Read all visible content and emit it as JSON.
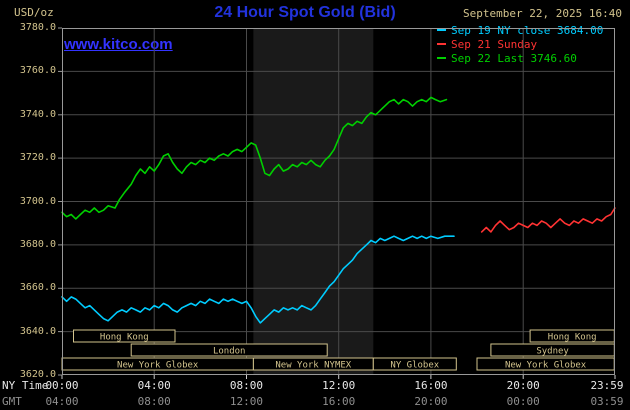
{
  "header": {
    "units": "USD/oz",
    "title": "24 Hour Spot Gold (Bid)",
    "datetime": "September 22, 2025 16:40",
    "watermark": "www.kitco.com"
  },
  "legend": [
    {
      "label": "Sep 19 NY close 3684.00",
      "color": "#00ccff"
    },
    {
      "label": "Sep 21 Sunday",
      "color": "#ff3333"
    },
    {
      "label": "Sep 22 Last 3746.60",
      "color": "#00d000"
    }
  ],
  "axes": {
    "ny_time_label": "NY Time",
    "gmt_label": "GMT",
    "tick_hours": [
      0,
      4,
      8,
      12,
      16,
      20,
      23.983
    ],
    "ny_ticks": [
      "00:00",
      "04:00",
      "08:00",
      "12:00",
      "16:00",
      "20:00",
      "23:59"
    ],
    "gmt_ticks": [
      "04:00",
      "08:00",
      "12:00",
      "16:00",
      "20:00",
      "00:00",
      "03:59"
    ],
    "y_ticks": [
      "3780.0",
      "3760.0",
      "3740.0",
      "3720.0",
      "3700.0",
      "3680.0",
      "3660.0",
      "3640.0",
      "3620.0"
    ]
  },
  "sessions": [
    {
      "row": 0,
      "label": "Hong Kong",
      "start": 0.5,
      "end": 4.9
    },
    {
      "row": 0,
      "label": "Hong Kong",
      "start": 20.3,
      "end": 23.95
    },
    {
      "row": 1,
      "label": "London",
      "start": 3.0,
      "end": 11.5
    },
    {
      "row": 1,
      "label": "Sydney",
      "start": 18.6,
      "end": 23.95
    },
    {
      "row": 2,
      "label": "New York Globex",
      "start": 0.0,
      "end": 8.3
    },
    {
      "row": 2,
      "label": "New York NYMEX",
      "start": 8.3,
      "end": 13.5
    },
    {
      "row": 2,
      "label": "NY Globex",
      "start": 13.5,
      "end": 17.1
    },
    {
      "row": 2,
      "label": "New York Globex",
      "start": 18.0,
      "end": 23.95
    }
  ],
  "colors": {
    "background": "#000000",
    "grid": "#4a4a4a",
    "border": "#999999",
    "tan": "#d2c38d",
    "shade": "#1a1a1a",
    "tick": "#cccccc"
  },
  "chart_data": {
    "type": "line",
    "title": "24 Hour Spot Gold (Bid)",
    "xlabel": "NY Time",
    "ylabel": "USD/oz",
    "xlim": [
      0,
      23.983
    ],
    "ylim": [
      3620,
      3780
    ],
    "y_gridlines": [
      3640,
      3660,
      3680,
      3700,
      3720,
      3740,
      3760
    ],
    "x_gridlines_hours": [
      4,
      8,
      12,
      16,
      20
    ],
    "shaded_region_hours": [
      8.3,
      13.5
    ],
    "series": [
      {
        "name": "Sep 19 NY close 3684.00",
        "color": "#00ccff",
        "points": [
          [
            0,
            3656
          ],
          [
            0.2,
            3654
          ],
          [
            0.4,
            3656
          ],
          [
            0.6,
            3655
          ],
          [
            0.8,
            3653
          ],
          [
            1,
            3651
          ],
          [
            1.2,
            3652
          ],
          [
            1.4,
            3650
          ],
          [
            1.6,
            3648
          ],
          [
            1.8,
            3646
          ],
          [
            2,
            3645
          ],
          [
            2.2,
            3647
          ],
          [
            2.4,
            3649
          ],
          [
            2.6,
            3650
          ],
          [
            2.8,
            3649
          ],
          [
            3,
            3651
          ],
          [
            3.2,
            3650
          ],
          [
            3.4,
            3649
          ],
          [
            3.6,
            3651
          ],
          [
            3.8,
            3650
          ],
          [
            4,
            3652
          ],
          [
            4.2,
            3651
          ],
          [
            4.4,
            3653
          ],
          [
            4.6,
            3652
          ],
          [
            4.8,
            3650
          ],
          [
            5,
            3649
          ],
          [
            5.2,
            3651
          ],
          [
            5.4,
            3652
          ],
          [
            5.6,
            3653
          ],
          [
            5.8,
            3652
          ],
          [
            6,
            3654
          ],
          [
            6.2,
            3653
          ],
          [
            6.4,
            3655
          ],
          [
            6.6,
            3654
          ],
          [
            6.8,
            3653
          ],
          [
            7,
            3655
          ],
          [
            7.2,
            3654
          ],
          [
            7.4,
            3655
          ],
          [
            7.6,
            3654
          ],
          [
            7.8,
            3653
          ],
          [
            8,
            3654
          ],
          [
            8.2,
            3651
          ],
          [
            8.4,
            3647
          ],
          [
            8.6,
            3644
          ],
          [
            8.8,
            3646
          ],
          [
            9,
            3648
          ],
          [
            9.2,
            3650
          ],
          [
            9.4,
            3649
          ],
          [
            9.6,
            3651
          ],
          [
            9.8,
            3650
          ],
          [
            10,
            3651
          ],
          [
            10.2,
            3650
          ],
          [
            10.4,
            3652
          ],
          [
            10.6,
            3651
          ],
          [
            10.8,
            3650
          ],
          [
            11,
            3652
          ],
          [
            11.2,
            3655
          ],
          [
            11.4,
            3658
          ],
          [
            11.6,
            3661
          ],
          [
            11.8,
            3663
          ],
          [
            12,
            3666
          ],
          [
            12.2,
            3669
          ],
          [
            12.4,
            3671
          ],
          [
            12.6,
            3673
          ],
          [
            12.8,
            3676
          ],
          [
            13,
            3678
          ],
          [
            13.2,
            3680
          ],
          [
            13.4,
            3682
          ],
          [
            13.6,
            3681
          ],
          [
            13.8,
            3683
          ],
          [
            14,
            3682
          ],
          [
            14.2,
            3683
          ],
          [
            14.4,
            3684
          ],
          [
            14.6,
            3683
          ],
          [
            14.8,
            3682
          ],
          [
            15,
            3683
          ],
          [
            15.2,
            3684
          ],
          [
            15.4,
            3683
          ],
          [
            15.6,
            3684
          ],
          [
            15.8,
            3683
          ],
          [
            16,
            3684
          ],
          [
            16.3,
            3683
          ],
          [
            16.6,
            3684
          ],
          [
            17,
            3684
          ]
        ]
      },
      {
        "name": "Sep 21 Sunday",
        "color": "#ff3333",
        "points": [
          [
            18.2,
            3686
          ],
          [
            18.4,
            3688
          ],
          [
            18.6,
            3686
          ],
          [
            18.8,
            3689
          ],
          [
            19,
            3691
          ],
          [
            19.2,
            3689
          ],
          [
            19.4,
            3687
          ],
          [
            19.6,
            3688
          ],
          [
            19.8,
            3690
          ],
          [
            20,
            3689
          ],
          [
            20.2,
            3688
          ],
          [
            20.4,
            3690
          ],
          [
            20.6,
            3689
          ],
          [
            20.8,
            3691
          ],
          [
            21,
            3690
          ],
          [
            21.2,
            3688
          ],
          [
            21.4,
            3690
          ],
          [
            21.6,
            3692
          ],
          [
            21.8,
            3690
          ],
          [
            22,
            3689
          ],
          [
            22.2,
            3691
          ],
          [
            22.4,
            3690
          ],
          [
            22.6,
            3692
          ],
          [
            22.8,
            3691
          ],
          [
            23,
            3690
          ],
          [
            23.2,
            3692
          ],
          [
            23.4,
            3691
          ],
          [
            23.6,
            3693
          ],
          [
            23.8,
            3694
          ],
          [
            23.98,
            3697
          ]
        ]
      },
      {
        "name": "Sep 22 Last 3746.60",
        "color": "#00d000",
        "points": [
          [
            0,
            3695
          ],
          [
            0.2,
            3693
          ],
          [
            0.4,
            3694
          ],
          [
            0.6,
            3692
          ],
          [
            0.8,
            3694
          ],
          [
            1,
            3696
          ],
          [
            1.2,
            3695
          ],
          [
            1.4,
            3697
          ],
          [
            1.6,
            3695
          ],
          [
            1.8,
            3696
          ],
          [
            2,
            3698
          ],
          [
            2.3,
            3697
          ],
          [
            2.5,
            3701
          ],
          [
            2.7,
            3704
          ],
          [
            3,
            3708
          ],
          [
            3.2,
            3712
          ],
          [
            3.4,
            3715
          ],
          [
            3.6,
            3713
          ],
          [
            3.8,
            3716
          ],
          [
            4,
            3714
          ],
          [
            4.2,
            3717
          ],
          [
            4.4,
            3721
          ],
          [
            4.6,
            3722
          ],
          [
            4.8,
            3718
          ],
          [
            5,
            3715
          ],
          [
            5.2,
            3713
          ],
          [
            5.4,
            3716
          ],
          [
            5.6,
            3718
          ],
          [
            5.8,
            3717
          ],
          [
            6,
            3719
          ],
          [
            6.2,
            3718
          ],
          [
            6.4,
            3720
          ],
          [
            6.6,
            3719
          ],
          [
            6.8,
            3721
          ],
          [
            7,
            3722
          ],
          [
            7.2,
            3721
          ],
          [
            7.4,
            3723
          ],
          [
            7.6,
            3724
          ],
          [
            7.8,
            3723
          ],
          [
            8,
            3725
          ],
          [
            8.2,
            3727
          ],
          [
            8.4,
            3726
          ],
          [
            8.6,
            3720
          ],
          [
            8.8,
            3713
          ],
          [
            9,
            3712
          ],
          [
            9.2,
            3715
          ],
          [
            9.4,
            3717
          ],
          [
            9.6,
            3714
          ],
          [
            9.8,
            3715
          ],
          [
            10,
            3717
          ],
          [
            10.2,
            3716
          ],
          [
            10.4,
            3718
          ],
          [
            10.6,
            3717
          ],
          [
            10.8,
            3719
          ],
          [
            11,
            3717
          ],
          [
            11.2,
            3716
          ],
          [
            11.4,
            3719
          ],
          [
            11.6,
            3721
          ],
          [
            11.8,
            3724
          ],
          [
            12,
            3729
          ],
          [
            12.2,
            3734
          ],
          [
            12.4,
            3736
          ],
          [
            12.6,
            3735
          ],
          [
            12.8,
            3737
          ],
          [
            13,
            3736
          ],
          [
            13.2,
            3739
          ],
          [
            13.4,
            3741
          ],
          [
            13.6,
            3740
          ],
          [
            13.8,
            3742
          ],
          [
            14,
            3744
          ],
          [
            14.2,
            3746
          ],
          [
            14.4,
            3747
          ],
          [
            14.6,
            3745
          ],
          [
            14.8,
            3747
          ],
          [
            15,
            3746
          ],
          [
            15.2,
            3744
          ],
          [
            15.4,
            3746
          ],
          [
            15.6,
            3747
          ],
          [
            15.8,
            3746
          ],
          [
            16,
            3748
          ],
          [
            16.2,
            3747
          ],
          [
            16.4,
            3746
          ],
          [
            16.67,
            3747
          ]
        ]
      }
    ]
  }
}
